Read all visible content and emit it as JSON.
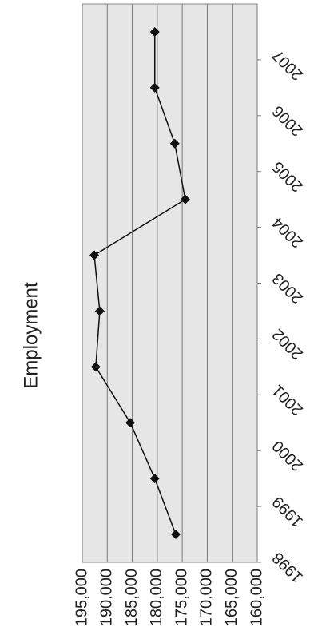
{
  "chart_data": {
    "type": "line",
    "title": "Employment",
    "categories": [
      "1998",
      "1999",
      "2000",
      "2001",
      "2002",
      "2003",
      "2004",
      "2005",
      "2006",
      "2007"
    ],
    "values": [
      176300,
      180500,
      185400,
      192300,
      191500,
      192600,
      174400,
      176500,
      180500,
      180500
    ],
    "color": "#111111",
    "ylim": [
      160000,
      195000
    ],
    "yticks": [
      {
        "value": 160000,
        "label": "160,000"
      },
      {
        "value": 165000,
        "label": "165,000"
      },
      {
        "value": 170000,
        "label": "170,000"
      },
      {
        "value": 175000,
        "label": "175,000"
      },
      {
        "value": 180000,
        "label": "180,000"
      },
      {
        "value": 185000,
        "label": "185,000"
      },
      {
        "value": 190000,
        "label": "190,000"
      },
      {
        "value": 195000,
        "label": "195,000"
      }
    ],
    "grid": true
  }
}
